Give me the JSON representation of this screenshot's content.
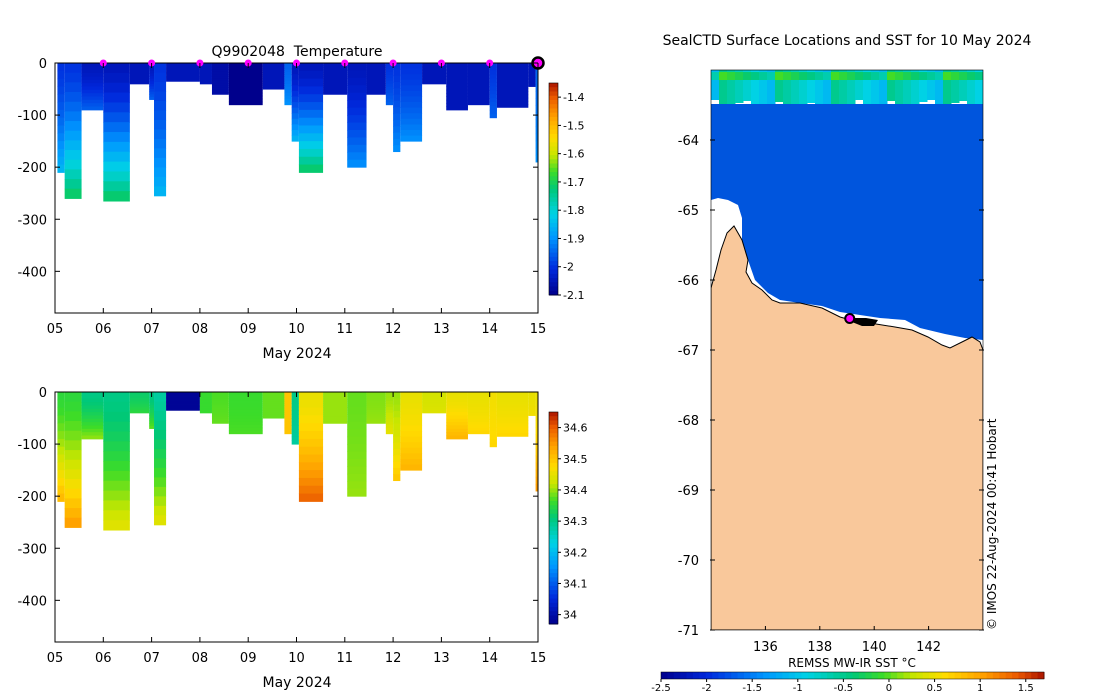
{
  "chart_data": [
    {
      "type": "heatmap",
      "title": "Q9902048  Temperature",
      "xlabel": "May 2024",
      "ylabel": "",
      "x_ticks": [
        "05",
        "06",
        "07",
        "08",
        "09",
        "10",
        "11",
        "12",
        "13",
        "14",
        "15"
      ],
      "y_ticks": [
        0,
        -100,
        -200,
        -300,
        -400
      ],
      "xlim": [
        5,
        15
      ],
      "ylim": [
        -480,
        0
      ],
      "colorbar": {
        "min": -2.1,
        "max": -1.35,
        "ticks": [
          -1.4,
          -1.5,
          -1.6,
          -1.7,
          -1.8,
          -1.9,
          -2,
          -2.1
        ]
      },
      "profile_marker_days": [
        6,
        7,
        8,
        9,
        10,
        11,
        12,
        13,
        14
      ],
      "current_marker_day": 15,
      "profiles": [
        {
          "day": 5.05,
          "depth": 210,
          "surface": -2.0,
          "bottom": -1.85
        },
        {
          "day": 5.2,
          "depth": 260,
          "surface": -2.0,
          "bottom": -1.7
        },
        {
          "day": 5.55,
          "depth": 90,
          "surface": -2.05,
          "bottom": -1.95
        },
        {
          "day": 6.0,
          "depth": 265,
          "surface": -2.05,
          "bottom": -1.7
        },
        {
          "day": 6.55,
          "depth": 40,
          "surface": -2.05,
          "bottom": -2.05
        },
        {
          "day": 6.95,
          "depth": 70,
          "surface": -2.05,
          "bottom": -1.95
        },
        {
          "day": 7.05,
          "depth": 255,
          "surface": -2.0,
          "bottom": -1.85
        },
        {
          "day": 7.3,
          "depth": 35,
          "surface": -2.05,
          "bottom": -2.05
        },
        {
          "day": 8.0,
          "depth": 40,
          "surface": -2.05,
          "bottom": -2.05
        },
        {
          "day": 8.25,
          "depth": 60,
          "surface": -2.07,
          "bottom": -2.07
        },
        {
          "day": 8.6,
          "depth": 80,
          "surface": -2.1,
          "bottom": -2.1
        },
        {
          "day": 9.3,
          "depth": 50,
          "surface": -2.05,
          "bottom": -2.05
        },
        {
          "day": 9.75,
          "depth": 80,
          "surface": -1.95,
          "bottom": -1.9
        },
        {
          "day": 9.9,
          "depth": 150,
          "surface": -2.05,
          "bottom": -1.85
        },
        {
          "day": 10.05,
          "depth": 210,
          "surface": -2.05,
          "bottom": -1.7
        },
        {
          "day": 10.55,
          "depth": 60,
          "surface": -2.05,
          "bottom": -2.05
        },
        {
          "day": 11.05,
          "depth": 200,
          "surface": -2.05,
          "bottom": -1.9
        },
        {
          "day": 11.45,
          "depth": 60,
          "surface": -2.05,
          "bottom": -2.05
        },
        {
          "day": 11.85,
          "depth": 80,
          "surface": -2.0,
          "bottom": -1.95
        },
        {
          "day": 12.0,
          "depth": 170,
          "surface": -2.0,
          "bottom": -1.9
        },
        {
          "day": 12.15,
          "depth": 150,
          "surface": -2.0,
          "bottom": -1.9
        },
        {
          "day": 12.6,
          "depth": 40,
          "surface": -2.05,
          "bottom": -2.05
        },
        {
          "day": 13.1,
          "depth": 90,
          "surface": -2.05,
          "bottom": -2.05
        },
        {
          "day": 13.55,
          "depth": 80,
          "surface": -2.05,
          "bottom": -2.05
        },
        {
          "day": 14.0,
          "depth": 105,
          "surface": -2.0,
          "bottom": -1.95
        },
        {
          "day": 14.15,
          "depth": 85,
          "surface": -2.05,
          "bottom": -2.05
        },
        {
          "day": 14.8,
          "depth": 45,
          "surface": -2.05,
          "bottom": -2.05
        },
        {
          "day": 14.95,
          "depth": 190,
          "surface": -1.95,
          "bottom": -1.9
        }
      ]
    },
    {
      "type": "heatmap",
      "title": "",
      "xlabel": "May 2024",
      "ylabel": "",
      "x_ticks": [
        "05",
        "06",
        "07",
        "08",
        "09",
        "10",
        "11",
        "12",
        "13",
        "14",
        "15"
      ],
      "y_ticks": [
        0,
        -100,
        -200,
        -300,
        -400
      ],
      "xlim": [
        5,
        15
      ],
      "ylim": [
        -480,
        0
      ],
      "colorbar": {
        "min": 33.97,
        "max": 34.65,
        "ticks": [
          34.6,
          34.5,
          34.4,
          34.3,
          34.2,
          34.1,
          34
        ]
      },
      "profiles": [
        {
          "day": 5.05,
          "depth": 210,
          "surface": 34.35,
          "bottom": 34.52
        },
        {
          "day": 5.2,
          "depth": 260,
          "surface": 34.35,
          "bottom": 34.55
        },
        {
          "day": 5.55,
          "depth": 90,
          "surface": 34.3,
          "bottom": 34.4
        },
        {
          "day": 6.0,
          "depth": 265,
          "surface": 34.3,
          "bottom": 34.45
        },
        {
          "day": 6.55,
          "depth": 40,
          "surface": 34.32,
          "bottom": 34.35
        },
        {
          "day": 6.95,
          "depth": 70,
          "surface": 34.3,
          "bottom": 34.38
        },
        {
          "day": 7.05,
          "depth": 255,
          "surface": 34.28,
          "bottom": 34.45
        },
        {
          "day": 7.3,
          "depth": 35,
          "surface": 33.98,
          "bottom": 33.98
        },
        {
          "day": 8.0,
          "depth": 40,
          "surface": 34.36,
          "bottom": 34.36
        },
        {
          "day": 8.25,
          "depth": 60,
          "surface": 34.37,
          "bottom": 34.38
        },
        {
          "day": 8.6,
          "depth": 80,
          "surface": 34.36,
          "bottom": 34.37
        },
        {
          "day": 9.3,
          "depth": 50,
          "surface": 34.38,
          "bottom": 34.38
        },
        {
          "day": 9.75,
          "depth": 80,
          "surface": 34.5,
          "bottom": 34.5
        },
        {
          "day": 9.9,
          "depth": 100,
          "surface": 34.3,
          "bottom": 34.28
        },
        {
          "day": 10.05,
          "depth": 210,
          "surface": 34.45,
          "bottom": 34.6
        },
        {
          "day": 10.55,
          "depth": 60,
          "surface": 34.4,
          "bottom": 34.4
        },
        {
          "day": 11.05,
          "depth": 200,
          "surface": 34.38,
          "bottom": 34.4
        },
        {
          "day": 11.45,
          "depth": 60,
          "surface": 34.39,
          "bottom": 34.4
        },
        {
          "day": 11.85,
          "depth": 80,
          "surface": 34.4,
          "bottom": 34.45
        },
        {
          "day": 12.0,
          "depth": 170,
          "surface": 34.4,
          "bottom": 34.5
        },
        {
          "day": 12.15,
          "depth": 150,
          "surface": 34.45,
          "bottom": 34.52
        },
        {
          "day": 12.6,
          "depth": 40,
          "surface": 34.43,
          "bottom": 34.44
        },
        {
          "day": 13.1,
          "depth": 90,
          "surface": 34.45,
          "bottom": 34.52
        },
        {
          "day": 13.55,
          "depth": 80,
          "surface": 34.45,
          "bottom": 34.48
        },
        {
          "day": 14.0,
          "depth": 105,
          "surface": 34.46,
          "bottom": 34.48
        },
        {
          "day": 14.15,
          "depth": 85,
          "surface": 34.45,
          "bottom": 34.48
        },
        {
          "day": 14.8,
          "depth": 45,
          "surface": 34.45,
          "bottom": 34.46
        },
        {
          "day": 14.95,
          "depth": 190,
          "surface": 34.45,
          "bottom": 34.55
        }
      ]
    },
    {
      "type": "map",
      "title": "SealCTD Surface Locations and SST for 10 May 2024",
      "xlabel": "REMSS MW-IR SST °C",
      "x_ticks": [
        136,
        138,
        140,
        142
      ],
      "y_ticks": [
        -64,
        -65,
        -66,
        -67,
        -68,
        -69,
        -70,
        -71
      ],
      "lon_range": [
        134.0,
        144.0
      ],
      "lat_range": [
        -71.0,
        -63.0
      ],
      "colorbar_ticks": [
        -2.5,
        -2,
        -1.5,
        -1,
        -0.5,
        0,
        0.5,
        1,
        1.5
      ],
      "sst_open_water": -1.7,
      "sst_northern_band": -0.8,
      "seal_location": {
        "lon": 139.1,
        "lat": -66.55
      },
      "watermark": "© IMOS 22-Aug-2024 00:41 Hobart"
    }
  ]
}
